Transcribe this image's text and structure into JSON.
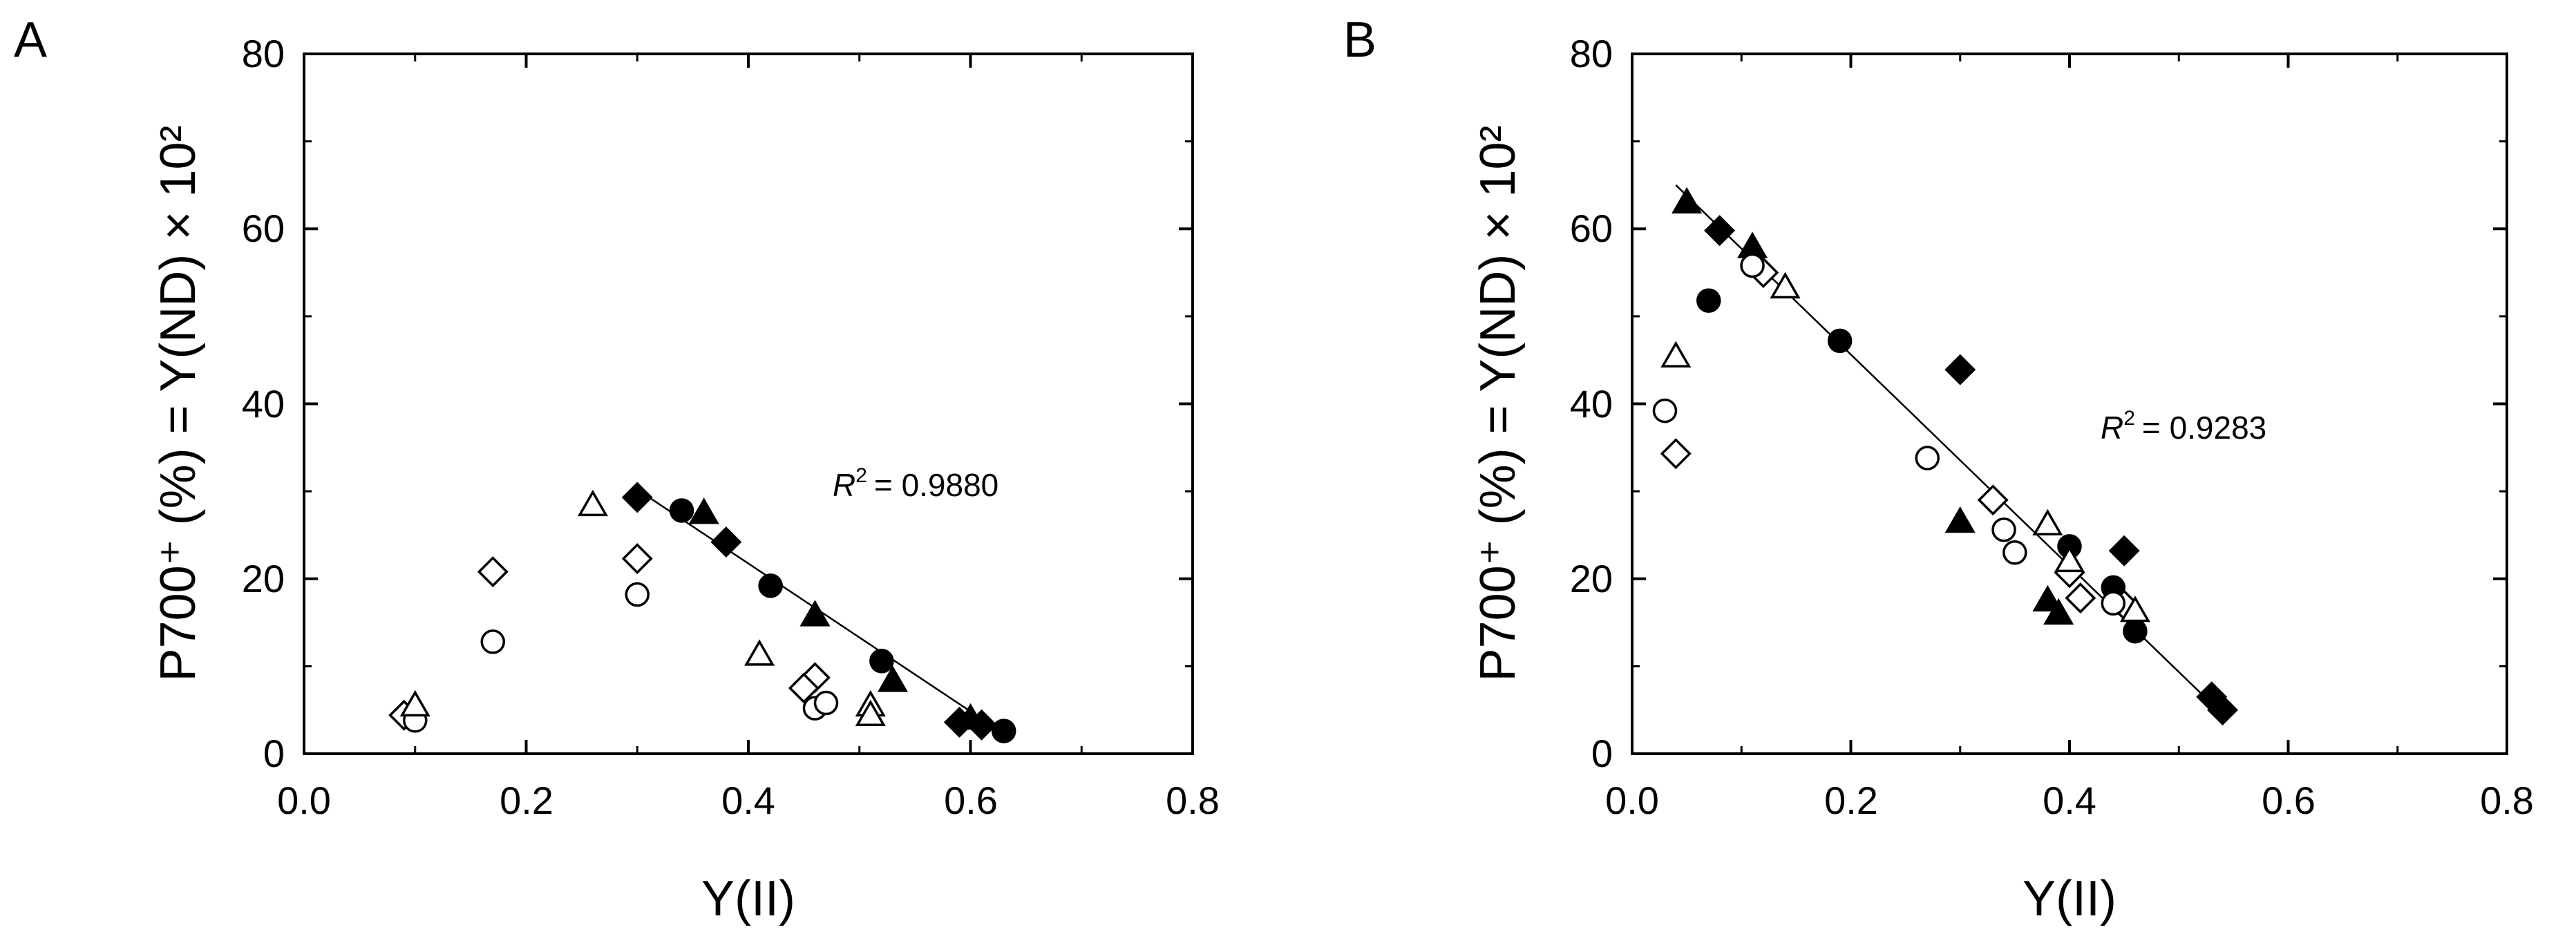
{
  "chart_data": [
    {
      "panel_label": "A",
      "type": "scatter",
      "title": "",
      "xlabel": "Y(II)",
      "ylabel": "P700⁺ (%) = Y(ND) × 10²",
      "xlim": [
        0.0,
        0.8
      ],
      "ylim": [
        0,
        80
      ],
      "xticks": [
        "0.0",
        "0.2",
        "0.4",
        "0.6",
        "0.8"
      ],
      "yticks": [
        "0",
        "20",
        "40",
        "60",
        "80"
      ],
      "grid": false,
      "legend": "none",
      "annotation": {
        "r2_label": "R",
        "r2_sup": "2",
        "r2_value": "=  0.9880"
      },
      "fit_line": {
        "x": [
          0.3,
          0.63
        ],
        "y": [
          30.2,
          2.3
        ]
      },
      "series": [
        {
          "marker": "filled-diamond",
          "points": [
            [
              0.3,
              29.3
            ],
            [
              0.38,
              24.2
            ],
            [
              0.59,
              3.6
            ],
            [
              0.61,
              3.3
            ]
          ]
        },
        {
          "marker": "filled-circle",
          "points": [
            [
              0.34,
              27.8
            ],
            [
              0.42,
              19.2
            ],
            [
              0.52,
              10.6
            ],
            [
              0.63,
              2.6
            ]
          ]
        },
        {
          "marker": "filled-triangle",
          "points": [
            [
              0.36,
              27.5
            ],
            [
              0.46,
              15.8
            ],
            [
              0.53,
              8.3
            ],
            [
              0.6,
              4.0
            ]
          ]
        },
        {
          "marker": "open-diamond",
          "points": [
            [
              0.09,
              4.4
            ],
            [
              0.17,
              20.8
            ],
            [
              0.3,
              22.3
            ],
            [
              0.46,
              8.7
            ],
            [
              0.45,
              7.5
            ]
          ]
        },
        {
          "marker": "open-circle",
          "points": [
            [
              0.1,
              3.8
            ],
            [
              0.17,
              12.8
            ],
            [
              0.3,
              18.2
            ],
            [
              0.46,
              5.2
            ],
            [
              0.47,
              5.8
            ]
          ]
        },
        {
          "marker": "open-triangle",
          "points": [
            [
              0.1,
              5.5
            ],
            [
              0.26,
              28.4
            ],
            [
              0.41,
              11.3
            ],
            [
              0.51,
              5.5
            ],
            [
              0.51,
              4.4
            ]
          ]
        }
      ]
    },
    {
      "panel_label": "B",
      "type": "scatter",
      "title": "",
      "xlabel": "Y(II)",
      "ylabel": "P700⁺ (%) = Y(ND) × 10²",
      "xlim": [
        0.0,
        0.8
      ],
      "ylim": [
        0,
        80
      ],
      "xticks": [
        "0.0",
        "0.2",
        "0.4",
        "0.6",
        "0.8"
      ],
      "yticks": [
        "0",
        "20",
        "40",
        "60",
        "80"
      ],
      "grid": false,
      "legend": "none",
      "annotation": {
        "r2_label": "R",
        "r2_sup": "2",
        "r2_value": "=  0.9283"
      },
      "fit_line": {
        "x": [
          0.04,
          0.54
        ],
        "y": [
          65.0,
          4.5
        ]
      },
      "series": [
        {
          "marker": "filled-diamond",
          "points": [
            [
              0.08,
              59.8
            ],
            [
              0.3,
              43.9
            ],
            [
              0.45,
              23.2
            ],
            [
              0.53,
              6.5
            ],
            [
              0.54,
              5.0
            ]
          ]
        },
        {
          "marker": "filled-circle",
          "points": [
            [
              0.07,
              51.8
            ],
            [
              0.19,
              47.2
            ],
            [
              0.4,
              23.7
            ],
            [
              0.44,
              19.0
            ],
            [
              0.46,
              14.0
            ]
          ]
        },
        {
          "marker": "filled-triangle",
          "points": [
            [
              0.05,
              63.0
            ],
            [
              0.11,
              57.9
            ],
            [
              0.3,
              26.5
            ],
            [
              0.38,
              17.5
            ],
            [
              0.39,
              16.0
            ]
          ]
        },
        {
          "marker": "open-diamond",
          "points": [
            [
              0.04,
              34.3
            ],
            [
              0.12,
              55.0
            ],
            [
              0.33,
              29.0
            ],
            [
              0.4,
              20.7
            ],
            [
              0.41,
              17.8
            ],
            [
              0.45,
              17.0
            ]
          ]
        },
        {
          "marker": "open-circle",
          "points": [
            [
              0.03,
              39.2
            ],
            [
              0.11,
              55.8
            ],
            [
              0.27,
              33.8
            ],
            [
              0.34,
              25.6
            ],
            [
              0.35,
              23.0
            ],
            [
              0.44,
              17.2
            ]
          ]
        },
        {
          "marker": "open-triangle",
          "points": [
            [
              0.04,
              45.4
            ],
            [
              0.14,
              53.3
            ],
            [
              0.38,
              26.2
            ],
            [
              0.4,
              22.0
            ],
            [
              0.46,
              16.3
            ]
          ]
        }
      ]
    }
  ]
}
